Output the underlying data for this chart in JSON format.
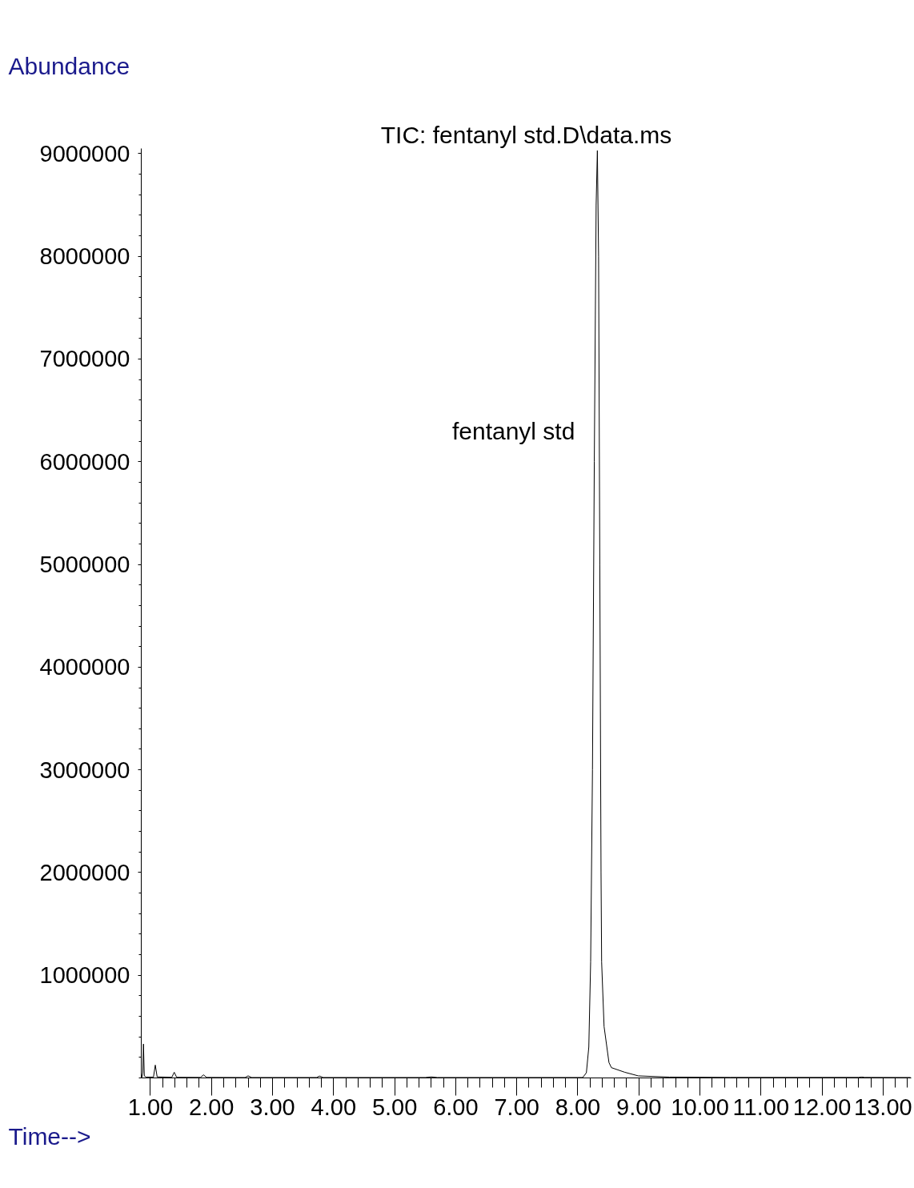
{
  "chart_data": {
    "type": "line",
    "title": "TIC: fentanyl std.D\\data.ms",
    "xlabel": "Time-->",
    "ylabel": "Abundance",
    "x": [
      0.86,
      0.875,
      0.886,
      0.9,
      0.93,
      1.05,
      1.08,
      1.11,
      1.35,
      1.39,
      1.43,
      1.82,
      1.87,
      1.92,
      2.55,
      2.6,
      2.66,
      3.72,
      3.77,
      3.83,
      5.5,
      5.6,
      5.7,
      8.08,
      8.14,
      8.18,
      8.21,
      8.24,
      8.27,
      8.3,
      8.32,
      8.34,
      8.36,
      8.38,
      8.39,
      8.43,
      8.51,
      8.55,
      8.77,
      8.99,
      9.5,
      10.5,
      12.6,
      12.65,
      12.7,
      13.45
    ],
    "series": [
      {
        "color": "#000000",
        "values": [
          5000,
          50000,
          330000,
          20000,
          8000,
          8000,
          125000,
          10000,
          6000,
          55000,
          6000,
          5000,
          30000,
          5000,
          4000,
          20000,
          4000,
          4000,
          18000,
          4000,
          4000,
          10000,
          4000,
          4000,
          50000,
          300000,
          1130000,
          3000000,
          6000000,
          8500000,
          9030000,
          8000000,
          5000000,
          2000000,
          1130000,
          500000,
          150000,
          100000,
          55000,
          20000,
          8000,
          5000,
          5000,
          9000,
          5000,
          4000
        ]
      }
    ],
    "xlim": [
      0.85,
      13.46
    ],
    "ylim": [
      0,
      9050000
    ],
    "xticks": [
      {
        "value": 1,
        "label": "1.00"
      },
      {
        "value": 2,
        "label": "2.00"
      },
      {
        "value": 3,
        "label": "3.00"
      },
      {
        "value": 4,
        "label": "4.00"
      },
      {
        "value": 5,
        "label": "5.00"
      },
      {
        "value": 6,
        "label": "6.00"
      },
      {
        "value": 7,
        "label": "7.00"
      },
      {
        "value": 8,
        "label": "8.00"
      },
      {
        "value": 9,
        "label": "9.00"
      },
      {
        "value": 10,
        "label": "10.00"
      },
      {
        "value": 11,
        "label": "11.00"
      },
      {
        "value": 12,
        "label": "12.00"
      },
      {
        "value": 13,
        "label": "13.00"
      }
    ],
    "yticks": [
      1000000,
      2000000,
      3000000,
      4000000,
      5000000,
      6000000,
      7000000,
      8000000,
      9000000
    ],
    "annotations": [
      {
        "text": "fentanyl std",
        "x": 8.32,
        "y": 6300000
      }
    ],
    "grid": false,
    "marker": "none",
    "line_style": "solid"
  }
}
